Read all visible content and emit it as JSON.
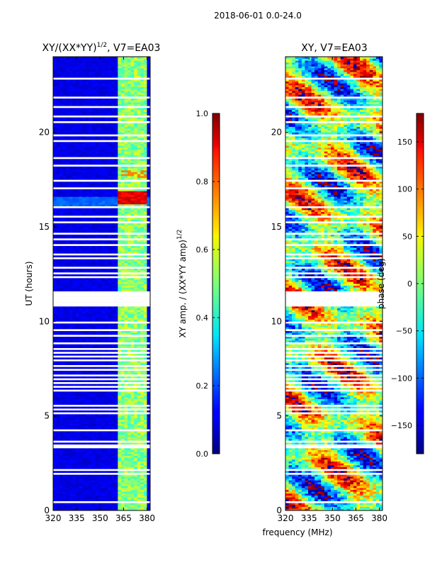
{
  "figure": {
    "suptitle": "2018-06-01 0.0-24.0"
  },
  "chart_data": [
    {
      "type": "heatmap",
      "id": "amp",
      "title_main": "XY/(XX*YY)",
      "title_sup": "1/2",
      "title_tail": ", V7=EA03",
      "xlabel": "",
      "ylabel": "UT (hours)",
      "xlim": [
        320,
        382
      ],
      "ylim": [
        0,
        24
      ],
      "xticks": [
        320,
        335,
        350,
        365,
        380
      ],
      "yticks": [
        0,
        5,
        10,
        15,
        20
      ],
      "grid": false,
      "colorbar": {
        "label_main": "XY amp. / (XX*YY amp)",
        "label_sup": "1/2",
        "range": [
          0.0,
          1.0
        ],
        "ticks": [
          0.0,
          0.2,
          0.4,
          0.6,
          0.8,
          1.0
        ],
        "tick_labels": [
          "0.0",
          "0.2",
          "0.4",
          "0.6",
          "0.8",
          "1.0"
        ]
      },
      "missing_data_hours": [
        0.4,
        1.9,
        2.1,
        3.3,
        3.45,
        3.6,
        4.25,
        5.1,
        5.35,
        5.55,
        6.3,
        6.5,
        6.7,
        6.9,
        7.15,
        7.4,
        7.6,
        7.9,
        8.1,
        8.3,
        8.55,
        8.85,
        9.2,
        9.55,
        9.95,
        10.8,
        11.1,
        11.5,
        12.3,
        12.55,
        12.85,
        13.3,
        13.5,
        14,
        14.3,
        14.6,
        15.2,
        15.55,
        16,
        17,
        17.4,
        18.2,
        18.6,
        19.5,
        19.8,
        20.5,
        20.8,
        21.3,
        21.8,
        22.8
      ],
      "missing_data_span_hours": [
        10.85,
        11.45
      ],
      "high_amplitude_channels_mhz": [
        362,
        364,
        366,
        368,
        370,
        372,
        374,
        376,
        378
      ]
    },
    {
      "type": "heatmap",
      "id": "phase",
      "title": "XY, V7=EA03",
      "xlabel": "frequency (MHz)",
      "ylabel": "",
      "xlim": [
        320,
        382
      ],
      "ylim": [
        0,
        24
      ],
      "xticks": [
        320,
        335,
        350,
        365,
        380
      ],
      "yticks": [
        0,
        5,
        10,
        15,
        20
      ],
      "grid": false,
      "colorbar": {
        "label": "phase (deg)",
        "range": [
          -180,
          180
        ],
        "ticks": [
          -150,
          -100,
          -50,
          0,
          50,
          100,
          150
        ],
        "tick_labels": [
          "−150",
          "−100",
          "−50",
          "0",
          "50",
          "100",
          "150"
        ]
      },
      "missing_data_hours": [
        0.4,
        1.9,
        2.1,
        3.3,
        3.45,
        3.6,
        4.25,
        5.1,
        5.35,
        5.55,
        6.3,
        6.5,
        6.7,
        6.9,
        7.15,
        7.4,
        7.6,
        7.9,
        8.1,
        8.3,
        8.55,
        8.85,
        9.2,
        9.55,
        9.95,
        10.8,
        11.1,
        11.5,
        12.3,
        12.55,
        12.85,
        13.3,
        13.5,
        14,
        14.3,
        14.6,
        15.2,
        15.55,
        16,
        17,
        17.4,
        18.2,
        18.6,
        19.5,
        19.8,
        20.5,
        20.8,
        21.3,
        21.8,
        22.8
      ],
      "missing_data_span_hours": [
        10.85,
        11.45
      ]
    }
  ]
}
